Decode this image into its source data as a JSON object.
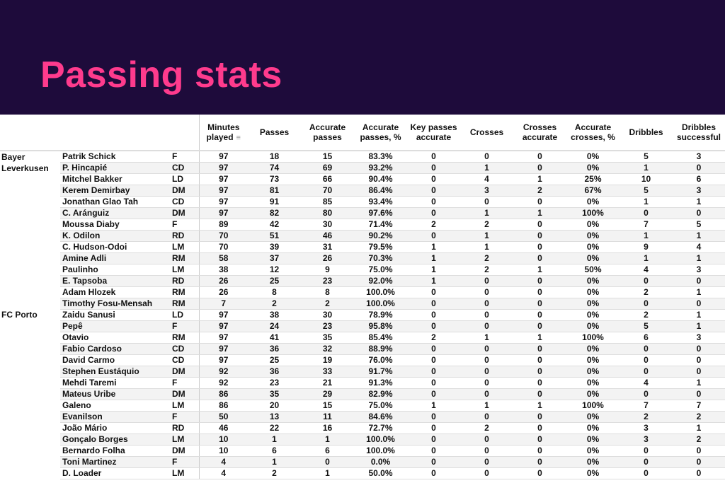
{
  "title": "Passing stats",
  "columns": [
    "Minutes played",
    "Passes",
    "Accurate passes",
    "Accurate passes, %",
    "Key passes accurate",
    "Crosses",
    "Crosses accurate",
    "Accurate crosses, %",
    "Dribbles",
    "Dribbles successful"
  ],
  "sort_icon": "sort-descending-icon",
  "teams": [
    {
      "name": "Bayer Leverkusen",
      "players": [
        [
          "Patrik Schick",
          "F",
          "97",
          "18",
          "15",
          "83.3%",
          "0",
          "0",
          "0",
          "0%",
          "5",
          "3"
        ],
        [
          "P. Hincapié",
          "CD",
          "97",
          "74",
          "69",
          "93.2%",
          "0",
          "1",
          "0",
          "0%",
          "1",
          "0"
        ],
        [
          "Mitchel Bakker",
          "LD",
          "97",
          "73",
          "66",
          "90.4%",
          "0",
          "4",
          "1",
          "25%",
          "10",
          "6"
        ],
        [
          "Kerem Demirbay",
          "DM",
          "97",
          "81",
          "70",
          "86.4%",
          "0",
          "3",
          "2",
          "67%",
          "5",
          "3"
        ],
        [
          "Jonathan Glao Tah",
          "CD",
          "97",
          "91",
          "85",
          "93.4%",
          "0",
          "0",
          "0",
          "0%",
          "1",
          "1"
        ],
        [
          "C. Aránguiz",
          "DM",
          "97",
          "82",
          "80",
          "97.6%",
          "0",
          "1",
          "1",
          "100%",
          "0",
          "0"
        ],
        [
          "Moussa Diaby",
          "F",
          "89",
          "42",
          "30",
          "71.4%",
          "2",
          "2",
          "0",
          "0%",
          "7",
          "5"
        ],
        [
          "K. Odilon",
          "RD",
          "70",
          "51",
          "46",
          "90.2%",
          "0",
          "1",
          "0",
          "0%",
          "1",
          "1"
        ],
        [
          "C. Hudson-Odoi",
          "LM",
          "70",
          "39",
          "31",
          "79.5%",
          "1",
          "1",
          "0",
          "0%",
          "9",
          "4"
        ],
        [
          "Amine Adli",
          "RM",
          "58",
          "37",
          "26",
          "70.3%",
          "1",
          "2",
          "0",
          "0%",
          "1",
          "1"
        ],
        [
          "Paulinho",
          "LM",
          "38",
          "12",
          "9",
          "75.0%",
          "1",
          "2",
          "1",
          "50%",
          "4",
          "3"
        ],
        [
          "E. Tapsoba",
          "RD",
          "26",
          "25",
          "23",
          "92.0%",
          "1",
          "0",
          "0",
          "0%",
          "0",
          "0"
        ],
        [
          "Adam Hlozek",
          "RM",
          "26",
          "8",
          "8",
          "100.0%",
          "0",
          "0",
          "0",
          "0%",
          "2",
          "1"
        ],
        [
          "Timothy Fosu-Mensah",
          "RM",
          "7",
          "2",
          "2",
          "100.0%",
          "0",
          "0",
          "0",
          "0%",
          "0",
          "0"
        ]
      ]
    },
    {
      "name": "FC Porto",
      "players": [
        [
          "Zaidu Sanusi",
          "LD",
          "97",
          "38",
          "30",
          "78.9%",
          "0",
          "0",
          "0",
          "0%",
          "2",
          "1"
        ],
        [
          "Pepê",
          "F",
          "97",
          "24",
          "23",
          "95.8%",
          "0",
          "0",
          "0",
          "0%",
          "5",
          "1"
        ],
        [
          "Otavio",
          "RM",
          "97",
          "41",
          "35",
          "85.4%",
          "2",
          "1",
          "1",
          "100%",
          "6",
          "3"
        ],
        [
          "Fabio Cardoso",
          "CD",
          "97",
          "36",
          "32",
          "88.9%",
          "0",
          "0",
          "0",
          "0%",
          "0",
          "0"
        ],
        [
          "David Carmo",
          "CD",
          "97",
          "25",
          "19",
          "76.0%",
          "0",
          "0",
          "0",
          "0%",
          "0",
          "0"
        ],
        [
          "Stephen Eustáquio",
          "DM",
          "92",
          "36",
          "33",
          "91.7%",
          "0",
          "0",
          "0",
          "0%",
          "0",
          "0"
        ],
        [
          "Mehdi Taremi",
          "F",
          "92",
          "23",
          "21",
          "91.3%",
          "0",
          "0",
          "0",
          "0%",
          "4",
          "1"
        ],
        [
          "Mateus Uribe",
          "DM",
          "86",
          "35",
          "29",
          "82.9%",
          "0",
          "0",
          "0",
          "0%",
          "0",
          "0"
        ],
        [
          "Galeno",
          "LM",
          "86",
          "20",
          "15",
          "75.0%",
          "1",
          "1",
          "1",
          "100%",
          "7",
          "7"
        ],
        [
          "Evanilson",
          "F",
          "50",
          "13",
          "11",
          "84.6%",
          "0",
          "0",
          "0",
          "0%",
          "2",
          "2"
        ],
        [
          "João Mário",
          "RD",
          "46",
          "22",
          "16",
          "72.7%",
          "0",
          "2",
          "0",
          "0%",
          "3",
          "1"
        ],
        [
          "Gonçalo Borges",
          "LM",
          "10",
          "1",
          "1",
          "100.0%",
          "0",
          "0",
          "0",
          "0%",
          "3",
          "2"
        ],
        [
          "Bernardo Folha",
          "DM",
          "10",
          "6",
          "6",
          "100.0%",
          "0",
          "0",
          "0",
          "0%",
          "0",
          "0"
        ],
        [
          "Toni Martinez",
          "F",
          "4",
          "1",
          "0",
          "0.0%",
          "0",
          "0",
          "0",
          "0%",
          "0",
          "0"
        ],
        [
          "D. Loader",
          "LM",
          "4",
          "2",
          "1",
          "50.0%",
          "0",
          "0",
          "0",
          "0%",
          "0",
          "0"
        ]
      ]
    }
  ]
}
